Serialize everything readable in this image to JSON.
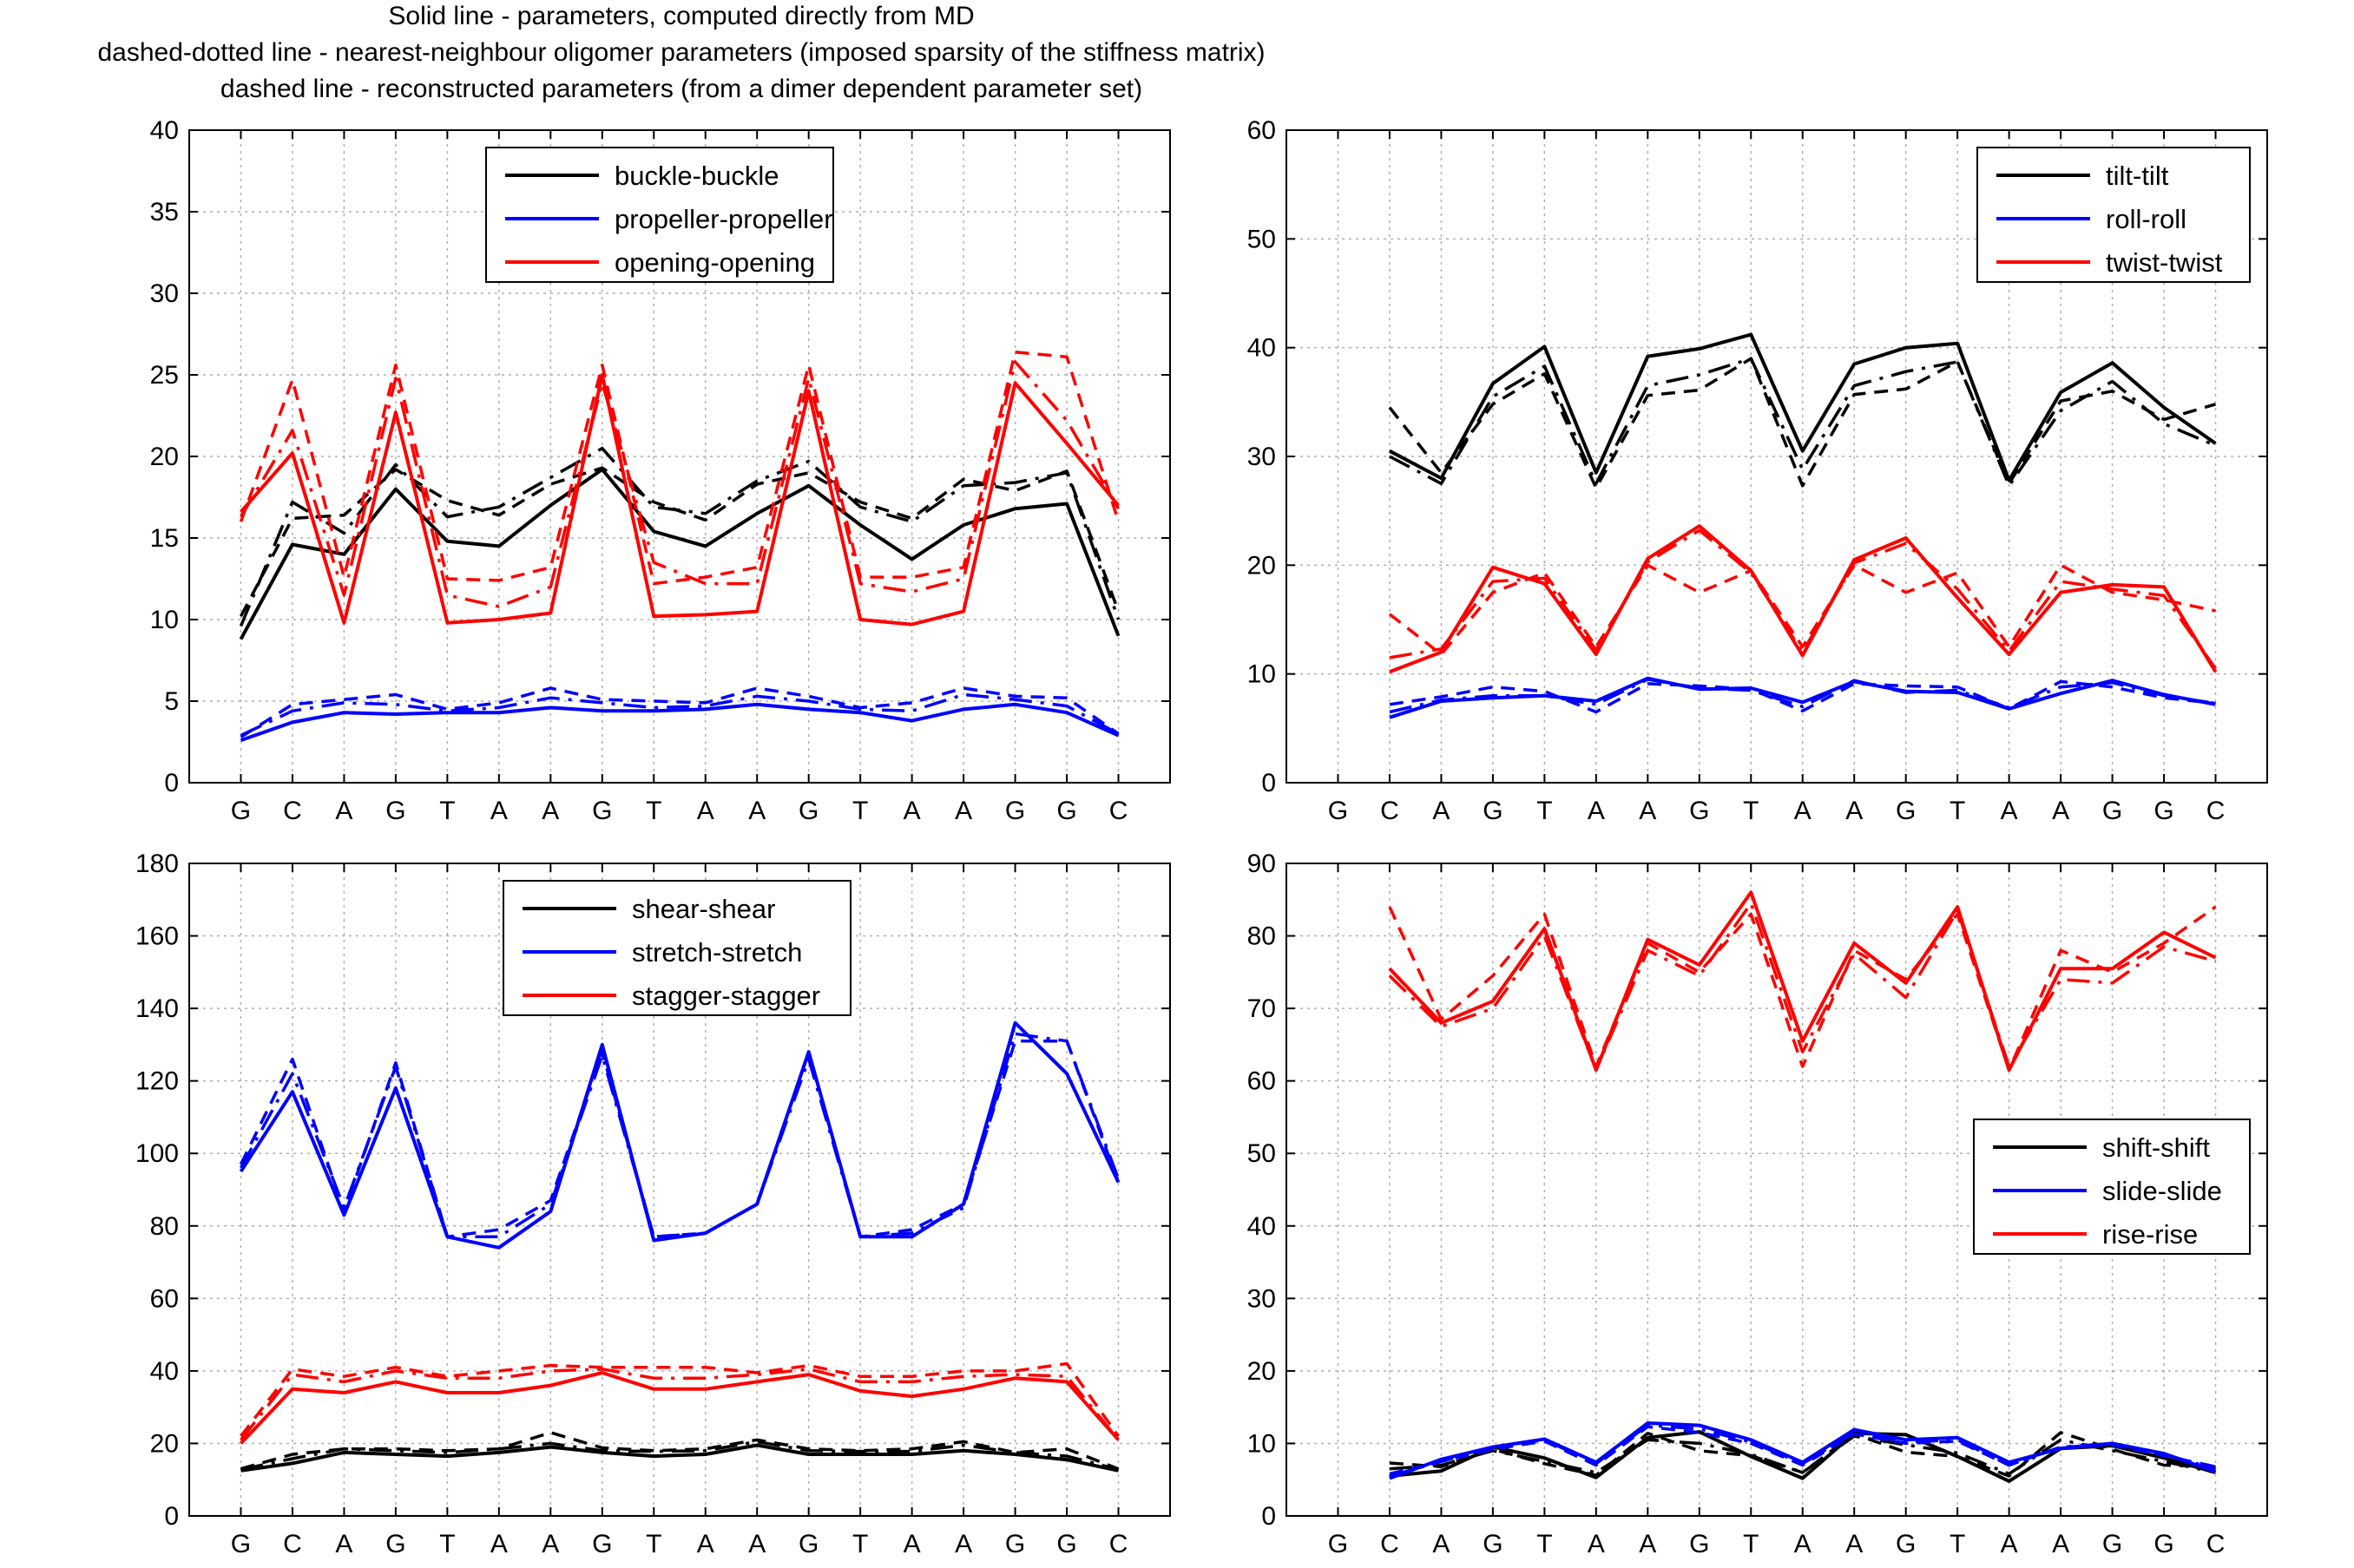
{
  "titles": [
    "Solid line - parameters, computed directly from MD",
    "dashed-dotted line - nearest-neighbour oligomer parameters (imposed sparsity of the stiffness matrix)",
    "dashed line - reconstructed parameters (from a dimer dependent parameter set)"
  ],
  "colors": {
    "black": "#000000",
    "blue": "#0000ff",
    "red": "#ff0000",
    "grid": "#b0b0b0"
  },
  "line_styles": {
    "solid": "computed directly from MD",
    "dashdot": "nearest-neighbour oligomer",
    "dashed": "reconstructed"
  },
  "chart_data": [
    {
      "type": "line",
      "sequence": [
        "G",
        "C",
        "A",
        "G",
        "T",
        "A",
        "A",
        "G",
        "T",
        "A",
        "A",
        "G",
        "T",
        "A",
        "A",
        "G",
        "G",
        "C"
      ],
      "ylim": [
        0,
        40
      ],
      "yticks": [
        0,
        5,
        10,
        15,
        20,
        25,
        30,
        35,
        40
      ],
      "grid": true,
      "legend_position": "top-center",
      "x_start": 0,
      "series": [
        {
          "name": "buckle-buckle",
          "color": "#000000",
          "solid": [
            8.8,
            14.6,
            14.0,
            18.0,
            14.8,
            14.5,
            17.0,
            19.2,
            15.4,
            14.5,
            16.5,
            18.2,
            15.8,
            13.7,
            15.8,
            16.8,
            17.1,
            9.0
          ],
          "dashdot": [
            9.6,
            17.2,
            15.3,
            19.5,
            16.3,
            16.9,
            18.7,
            20.5,
            16.9,
            16.5,
            18.5,
            19.7,
            16.9,
            16.0,
            18.2,
            18.4,
            19.0,
            10.0
          ],
          "dashed": [
            10.2,
            16.2,
            16.4,
            19.2,
            17.3,
            16.4,
            18.3,
            19.3,
            17.2,
            16.1,
            18.3,
            19.0,
            17.2,
            16.2,
            18.6,
            17.9,
            19.1,
            10.5
          ]
        },
        {
          "name": "propeller-propeller",
          "color": "#0000ff",
          "solid": [
            2.6,
            3.7,
            4.3,
            4.2,
            4.3,
            4.3,
            4.6,
            4.4,
            4.4,
            4.5,
            4.8,
            4.5,
            4.3,
            3.8,
            4.5,
            4.8,
            4.3,
            2.9
          ],
          "dashdot": [
            2.9,
            4.4,
            4.9,
            4.8,
            4.4,
            4.6,
            5.2,
            4.9,
            4.6,
            4.7,
            5.3,
            5.0,
            4.5,
            4.4,
            5.4,
            5.1,
            4.7,
            3.0
          ],
          "dashed": [
            2.8,
            4.8,
            5.1,
            5.4,
            4.5,
            4.9,
            5.8,
            5.1,
            5.0,
            4.9,
            5.8,
            5.3,
            4.6,
            4.9,
            5.8,
            5.3,
            5.2,
            3.0
          ]
        },
        {
          "name": "opening-opening",
          "color": "#ff0000",
          "solid": [
            16.6,
            20.2,
            9.8,
            22.7,
            9.8,
            10.0,
            10.4,
            25.0,
            10.2,
            10.3,
            10.5,
            24.0,
            10.0,
            9.7,
            10.5,
            24.5,
            20.8,
            17.0
          ],
          "dashdot": [
            16.3,
            21.6,
            11.5,
            24.8,
            11.5,
            10.8,
            12.0,
            24.5,
            13.5,
            12.2,
            12.2,
            24.8,
            12.2,
            11.7,
            12.5,
            25.8,
            22.2,
            16.8
          ],
          "dashed": [
            16.0,
            24.7,
            12.6,
            25.6,
            12.5,
            12.4,
            13.2,
            25.6,
            12.2,
            12.6,
            13.2,
            25.6,
            12.6,
            12.6,
            13.2,
            26.4,
            26.1,
            16.0
          ]
        }
      ]
    },
    {
      "type": "line",
      "sequence": [
        "G",
        "C",
        "A",
        "G",
        "T",
        "A",
        "A",
        "G",
        "T",
        "A",
        "A",
        "G",
        "T",
        "A",
        "A",
        "G",
        "G",
        "C"
      ],
      "ylim": [
        0,
        60
      ],
      "yticks": [
        0,
        10,
        20,
        30,
        40,
        50,
        60
      ],
      "grid": true,
      "legend_position": "top-right",
      "x_start": 1,
      "series": [
        {
          "name": "tilt-tilt",
          "color": "#000000",
          "solid": [
            30.5,
            28.0,
            36.7,
            40.1,
            28.5,
            39.2,
            39.9,
            41.2,
            30.5,
            38.5,
            40.0,
            40.4,
            27.8,
            35.9,
            38.6,
            34.5,
            31.2
          ],
          "dashdot": [
            30.0,
            27.5,
            35.5,
            38.3,
            27.5,
            36.5,
            37.5,
            39.0,
            28.8,
            36.5,
            37.8,
            38.7,
            27.3,
            34.2,
            36.9,
            33.0,
            31.0
          ],
          "dashed": [
            34.5,
            28.5,
            34.8,
            37.6,
            27.1,
            35.6,
            36.1,
            39.0,
            27.3,
            35.7,
            36.2,
            38.7,
            27.5,
            35.1,
            36.0,
            33.4,
            34.8
          ]
        },
        {
          "name": "roll-roll",
          "color": "#0000ff",
          "solid": [
            6.0,
            7.5,
            7.8,
            8.0,
            7.5,
            9.6,
            8.6,
            8.7,
            7.4,
            9.3,
            8.4,
            8.3,
            6.8,
            8.2,
            9.4,
            8.1,
            7.2
          ],
          "dashdot": [
            6.5,
            7.6,
            8.0,
            8.0,
            7.2,
            9.5,
            8.7,
            8.5,
            7.0,
            9.4,
            8.3,
            8.5,
            6.9,
            8.8,
            9.2,
            8.0,
            7.3
          ],
          "dashed": [
            7.2,
            7.9,
            8.8,
            8.4,
            6.5,
            9.1,
            8.9,
            8.6,
            6.6,
            9.1,
            8.9,
            8.8,
            6.8,
            9.3,
            8.8,
            7.8,
            7.3
          ]
        },
        {
          "name": "twist-twist",
          "color": "#ff0000",
          "solid": [
            10.2,
            12.0,
            19.8,
            18.3,
            11.8,
            20.6,
            23.6,
            19.5,
            11.7,
            20.5,
            22.5,
            17.0,
            11.8,
            17.5,
            18.2,
            18.0,
            10.2
          ],
          "dashdot": [
            11.5,
            12.3,
            18.5,
            18.8,
            12.2,
            20.3,
            23.2,
            19.3,
            12.0,
            20.2,
            22.0,
            17.8,
            12.1,
            18.5,
            17.8,
            17.2,
            10.5
          ],
          "dashed": [
            15.5,
            11.8,
            17.5,
            19.3,
            12.5,
            20.0,
            17.5,
            19.5,
            12.5,
            20.0,
            17.5,
            19.3,
            12.5,
            20.0,
            17.5,
            16.8,
            15.8
          ]
        }
      ]
    },
    {
      "type": "line",
      "sequence": [
        "G",
        "C",
        "A",
        "G",
        "T",
        "A",
        "A",
        "G",
        "T",
        "A",
        "A",
        "G",
        "T",
        "A",
        "A",
        "G",
        "G",
        "C"
      ],
      "ylim": [
        0,
        180
      ],
      "yticks": [
        0,
        20,
        40,
        60,
        80,
        100,
        120,
        140,
        160,
        180
      ],
      "grid": true,
      "legend_position": "top-center",
      "x_start": 0,
      "series": [
        {
          "name": "shear-shear",
          "color": "#000000",
          "solid": [
            12.5,
            14.5,
            17.5,
            17.0,
            16.5,
            17.5,
            19.0,
            17.5,
            16.5,
            17.0,
            19.5,
            17.0,
            17.0,
            17.0,
            18.0,
            17.0,
            15.5,
            12.5
          ],
          "dashdot": [
            12.8,
            15.8,
            18.5,
            18.0,
            17.5,
            18.5,
            20.0,
            18.0,
            17.8,
            18.0,
            20.5,
            18.0,
            17.8,
            17.8,
            19.5,
            17.5,
            16.5,
            12.8
          ],
          "dashed": [
            13.0,
            17.0,
            18.5,
            18.5,
            18.0,
            18.5,
            23.0,
            18.8,
            18.0,
            18.5,
            21.0,
            18.5,
            18.0,
            18.5,
            20.5,
            17.5,
            18.5,
            13.0
          ]
        },
        {
          "name": "stretch-stretch",
          "color": "#0000ff",
          "solid": [
            95,
            117,
            83,
            118,
            77,
            74,
            84,
            130,
            76,
            78,
            86,
            128,
            77,
            77,
            86,
            136,
            122,
            92
          ],
          "dashdot": [
            96,
            122,
            85,
            124,
            77,
            77,
            86,
            127,
            77,
            78,
            86,
            126,
            77,
            78,
            85,
            133,
            131,
            93
          ],
          "dashed": [
            97,
            126,
            84,
            125,
            77,
            79,
            87,
            128,
            77,
            78,
            86,
            128,
            77,
            79,
            86,
            131,
            131,
            92
          ]
        },
        {
          "name": "stagger-stagger",
          "color": "#ff0000",
          "solid": [
            20,
            35,
            34,
            37,
            34,
            34,
            36,
            39.5,
            35,
            35,
            37,
            39,
            34.5,
            33,
            35,
            38,
            37,
            21
          ],
          "dashdot": [
            21,
            39,
            37,
            40,
            38,
            38,
            40,
            40.5,
            38,
            38,
            39,
            40.5,
            37,
            37,
            38.5,
            39,
            38.5,
            21
          ],
          "dashed": [
            22,
            40.5,
            38.5,
            41,
            38.5,
            40,
            41.5,
            41,
            41,
            41,
            39.5,
            41.5,
            38.5,
            38.5,
            40,
            40,
            42,
            22
          ]
        }
      ]
    },
    {
      "type": "line",
      "sequence": [
        "G",
        "C",
        "A",
        "G",
        "T",
        "A",
        "A",
        "G",
        "T",
        "A",
        "A",
        "G",
        "T",
        "A",
        "A",
        "G",
        "G",
        "C"
      ],
      "ylim": [
        0,
        90
      ],
      "yticks": [
        0,
        10,
        20,
        30,
        40,
        50,
        60,
        70,
        80,
        90
      ],
      "grid": true,
      "legend_position": "right",
      "x_start": 1,
      "series": [
        {
          "name": "shift-shift",
          "color": "#000000",
          "solid": [
            5.5,
            6.2,
            9.5,
            8.0,
            5.3,
            10.8,
            11.6,
            8.2,
            5.2,
            11.4,
            11.2,
            8.2,
            4.8,
            9.3,
            9.7,
            8.0,
            6.0
          ],
          "dashdot": [
            6.5,
            7.0,
            9.0,
            7.5,
            6.0,
            10.5,
            10.0,
            8.5,
            6.0,
            11.0,
            9.8,
            8.7,
            5.8,
            10.5,
            9.0,
            7.5,
            6.0
          ],
          "dashed": [
            7.3,
            6.8,
            9.2,
            7.2,
            5.6,
            11.4,
            9.0,
            8.3,
            6.0,
            11.3,
            8.8,
            8.2,
            5.5,
            11.5,
            9.2,
            7.0,
            6.8
          ]
        },
        {
          "name": "slide-slide",
          "color": "#0000ff",
          "solid": [
            5.2,
            7.8,
            9.5,
            10.6,
            7.4,
            12.8,
            12.5,
            10.5,
            7.4,
            11.9,
            10.5,
            10.8,
            7.4,
            9.3,
            10.0,
            8.6,
            6.1
          ],
          "dashdot": [
            5.5,
            7.5,
            9.5,
            10.5,
            7.2,
            12.5,
            12.0,
            10.2,
            7.2,
            11.5,
            10.2,
            10.5,
            7.0,
            9.5,
            10.0,
            8.5,
            6.5
          ],
          "dashed": [
            5.8,
            7.5,
            9.2,
            10.3,
            7.0,
            12.3,
            11.5,
            10.0,
            7.0,
            11.3,
            10.0,
            10.3,
            7.0,
            9.5,
            9.8,
            8.3,
            6.8
          ]
        },
        {
          "name": "rise-rise",
          "color": "#ff0000",
          "solid": [
            75.5,
            68,
            71,
            81,
            61.5,
            79.5,
            76,
            86,
            65.5,
            79,
            73.5,
            84,
            61.5,
            75.5,
            75.5,
            80.5,
            77
          ],
          "dashdot": [
            74.5,
            67.5,
            70,
            80,
            61.5,
            78,
            74.5,
            84.5,
            64,
            77.5,
            71.5,
            83.5,
            62,
            74,
            73.5,
            78.5,
            76.5
          ],
          "dashed": [
            84,
            68.5,
            74.5,
            83,
            62,
            79,
            75,
            83,
            62,
            78,
            74,
            83,
            61.5,
            78,
            75,
            79,
            84
          ]
        }
      ]
    }
  ]
}
